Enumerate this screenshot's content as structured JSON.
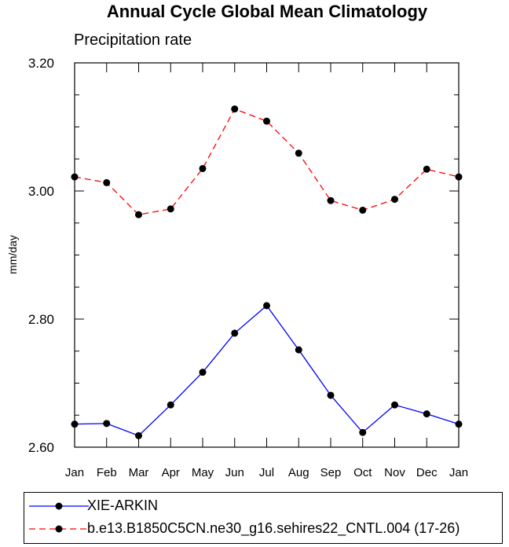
{
  "chart_data": {
    "type": "line",
    "title": "Annual Cycle Global Mean Climatology",
    "subtitle": "Precipitation rate",
    "xlabel": "",
    "ylabel": "mm/day",
    "ylim": [
      2.6,
      3.2
    ],
    "yticks": [
      "2.60",
      "2.80",
      "3.00",
      "3.20"
    ],
    "categories": [
      "Jan",
      "Feb",
      "Mar",
      "Apr",
      "May",
      "Jun",
      "Jul",
      "Aug",
      "Sep",
      "Oct",
      "Nov",
      "Dec",
      "Jan"
    ],
    "grid": false,
    "legend_position": "bottom",
    "series": [
      {
        "name": "XIE-ARKIN",
        "color": "#0000ff",
        "style": "solid",
        "values": [
          2.636,
          2.637,
          2.618,
          2.666,
          2.717,
          2.778,
          2.821,
          2.752,
          2.681,
          2.623,
          2.666,
          2.652,
          2.636
        ]
      },
      {
        "name": "b.e13.B1850C5CN.ne30_g16.sehires22_CNTL.004 (17-26)",
        "color": "#ff0000",
        "style": "dashed",
        "values": [
          3.022,
          3.013,
          2.963,
          2.972,
          3.035,
          3.128,
          3.109,
          3.059,
          2.985,
          2.97,
          2.987,
          3.034,
          3.022
        ]
      }
    ]
  }
}
